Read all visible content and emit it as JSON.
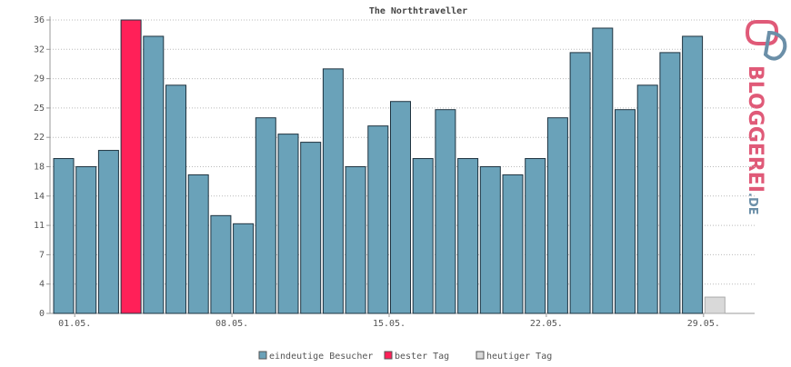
{
  "chart_data": {
    "type": "bar",
    "title": "The Northtraveller",
    "categories": [
      null,
      "01.05.",
      null,
      null,
      null,
      null,
      null,
      null,
      "08.05.",
      null,
      null,
      null,
      null,
      null,
      null,
      "15.05.",
      null,
      null,
      null,
      null,
      null,
      null,
      "22.05.",
      null,
      null,
      null,
      null,
      null,
      null,
      "29.05."
    ],
    "series": [
      {
        "name": "eindeutige Besucher",
        "color": "#6aa2b9",
        "values": [
          19,
          18,
          20,
          null,
          34,
          28,
          17,
          12,
          11,
          24,
          22,
          21,
          30,
          18,
          23,
          26,
          19,
          25,
          19,
          18,
          17,
          19,
          24,
          32,
          35,
          25,
          28,
          32,
          34,
          null
        ]
      },
      {
        "name": "bester Tag",
        "color": "#ff2058",
        "values": [
          null,
          null,
          null,
          36,
          null,
          null,
          null,
          null,
          null,
          null,
          null,
          null,
          null,
          null,
          null,
          null,
          null,
          null,
          null,
          null,
          null,
          null,
          null,
          null,
          null,
          null,
          null,
          null,
          null,
          null
        ]
      },
      {
        "name": "heutiger Tag",
        "color": "#d9d9d9",
        "values": [
          null,
          null,
          null,
          null,
          null,
          null,
          null,
          null,
          null,
          null,
          null,
          null,
          null,
          null,
          null,
          null,
          null,
          null,
          null,
          null,
          null,
          null,
          null,
          null,
          null,
          null,
          null,
          null,
          null,
          2
        ]
      }
    ],
    "ylim": [
      0,
      36
    ],
    "yticks": [
      0,
      {
        "value": 3.6,
        "label": "4"
      },
      {
        "value": 7.2,
        "label": "7"
      },
      {
        "value": 10.8,
        "label": "11"
      },
      {
        "value": 14.4,
        "label": "14"
      },
      {
        "value": 18,
        "label": "18"
      },
      {
        "value": 21.6,
        "label": "22"
      },
      {
        "value": 25.2,
        "label": "25"
      },
      {
        "value": 28.8,
        "label": "29"
      },
      {
        "value": 32.4,
        "label": "32"
      },
      36
    ],
    "grid": true,
    "logo": {
      "main": "BLOGGEREI",
      "suffix": ".DE"
    }
  }
}
